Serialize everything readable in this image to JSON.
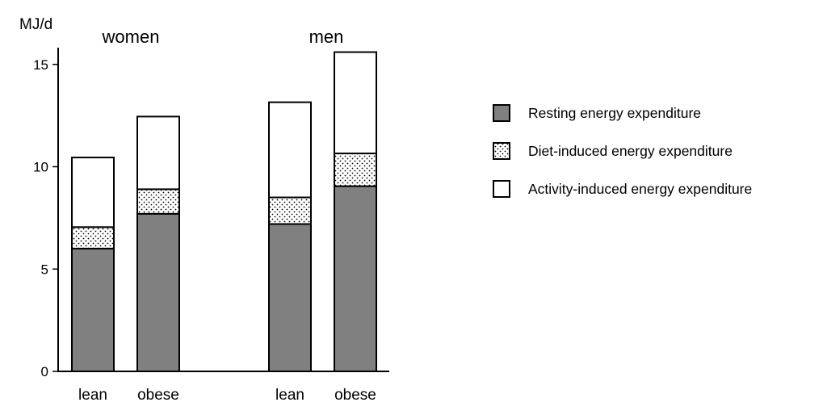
{
  "chart_data": {
    "type": "bar",
    "stacked": true,
    "ylabel": "MJ/d",
    "ylim": [
      0,
      15.5
    ],
    "yticks": [
      0,
      5,
      10,
      15
    ],
    "groups": [
      {
        "label": "women",
        "categories": [
          "lean",
          "obese"
        ]
      },
      {
        "label": "men",
        "categories": [
          "lean",
          "obese"
        ]
      }
    ],
    "categories": [
      "lean",
      "obese",
      "lean",
      "obese"
    ],
    "series": [
      {
        "name": "Resting energy expenditure",
        "values": [
          6.0,
          7.7,
          7.2,
          9.05
        ],
        "fill": "solid",
        "color": "#808080"
      },
      {
        "name": "Diet-induced energy expenditure",
        "values": [
          1.05,
          1.2,
          1.3,
          1.6
        ],
        "fill": "dotted",
        "color": "#ffffff"
      },
      {
        "name": "Activity-induced energy expenditure",
        "values": [
          3.4,
          3.55,
          4.65,
          4.95
        ],
        "fill": "empty",
        "color": "#ffffff"
      }
    ],
    "legend_position": "right",
    "grid": false
  }
}
